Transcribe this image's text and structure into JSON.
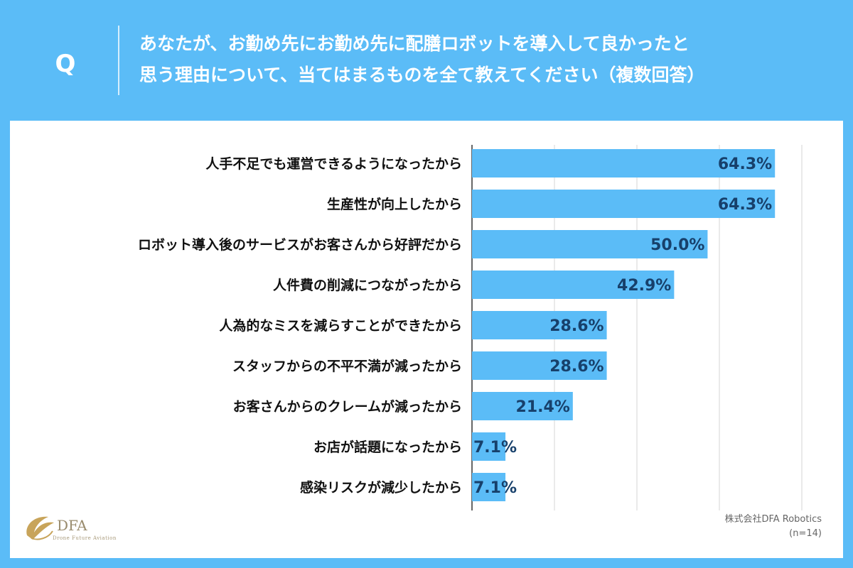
{
  "header": {
    "q_label": "Q",
    "question_line1": "あなたが、お勤め先にお勤め先に配膳ロボットを導入して良かったと",
    "question_line2": "思う理由について、当てはまるものを全て教えてください（複数回答）"
  },
  "chart_data": {
    "type": "bar",
    "orientation": "horizontal",
    "categories": [
      "人手不足でも運営できるようになったから",
      "生産性が向上したから",
      "ロボット導入後のサービスがお客さんから好評だから",
      "人件費の削減につながったから",
      "人為的なミスを減らすことができたから",
      "スタッフからの不平不満が減ったから",
      "お客さんからのクレームが減ったから",
      "お店が話題になったから",
      "感染リスクが減少したから"
    ],
    "values": [
      64.3,
      64.3,
      50.0,
      42.9,
      28.6,
      28.6,
      21.4,
      7.1,
      7.1
    ],
    "value_labels": [
      "64.3%",
      "64.3%",
      "50.0%",
      "42.9%",
      "28.6%",
      "28.6%",
      "21.4%",
      "7.1%",
      "7.1%"
    ],
    "xlim": [
      0,
      70
    ],
    "gridlines": [
      17.5,
      35,
      52.5,
      70
    ],
    "grid": true,
    "bar_color": "#5bbcf7",
    "value_label_color": "#17406b"
  },
  "footer": {
    "credit": "株式会社DFA Robotics",
    "sample_size": "(n=14)",
    "logo_text": "DFA",
    "logo_subtext": "Drone Future Aviation"
  },
  "colors": {
    "background": "#5bbcf7",
    "panel": "#ffffff",
    "logo": "#c8a45a"
  }
}
